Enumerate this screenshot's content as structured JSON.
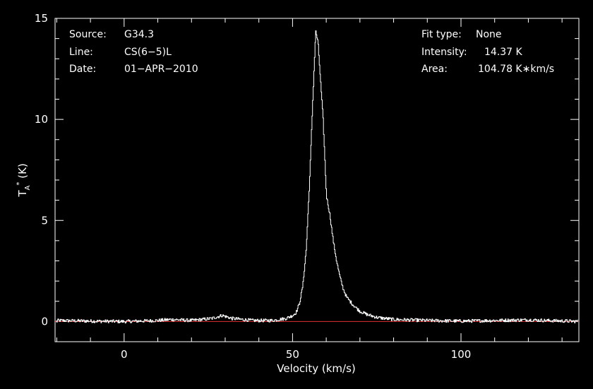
{
  "chart_data": {
    "type": "line",
    "xlabel": "Velocity (km/s)",
    "ylabel_main": "T",
    "ylabel_sub": "A",
    "ylabel_sup": "*",
    "ylabel_unit": " (K)",
    "xlim": [
      -20.5,
      135
    ],
    "ylim": [
      -1,
      15
    ],
    "xticks": [
      {
        "value": 0,
        "label": "0"
      },
      {
        "value": 50,
        "label": "50"
      },
      {
        "value": 100,
        "label": "100"
      }
    ],
    "yticks": [
      {
        "value": 0,
        "label": "0"
      },
      {
        "value": 5,
        "label": "5"
      },
      {
        "value": 10,
        "label": "10"
      },
      {
        "value": 15,
        "label": "15"
      }
    ],
    "grid": false,
    "baseline": {
      "value": 0,
      "color": "#e03030"
    },
    "series": [
      {
        "color": "#ffffff",
        "points": [
          [
            -20,
            0.05
          ],
          [
            -10,
            0.02
          ],
          [
            0,
            0.0
          ],
          [
            10,
            0.05
          ],
          [
            14,
            0.1
          ],
          [
            20,
            0.05
          ],
          [
            26,
            0.15
          ],
          [
            29,
            0.3
          ],
          [
            32,
            0.15
          ],
          [
            38,
            0.05
          ],
          [
            44,
            0.05
          ],
          [
            48,
            0.15
          ],
          [
            50,
            0.3
          ],
          [
            51,
            0.45
          ],
          [
            52,
            0.9
          ],
          [
            53,
            1.8
          ],
          [
            54,
            3.6
          ],
          [
            55,
            7.0
          ],
          [
            56,
            11.2
          ],
          [
            56.8,
            14.37
          ],
          [
            57.5,
            13.8
          ],
          [
            58,
            12.5
          ],
          [
            59,
            10.0
          ],
          [
            60,
            6.2
          ],
          [
            61,
            5.3
          ],
          [
            62,
            4.0
          ],
          [
            63,
            3.0
          ],
          [
            64,
            2.2
          ],
          [
            65,
            1.6
          ],
          [
            66,
            1.2
          ],
          [
            68,
            0.8
          ],
          [
            70,
            0.5
          ],
          [
            72,
            0.35
          ],
          [
            75,
            0.2
          ],
          [
            80,
            0.1
          ],
          [
            90,
            0.05
          ],
          [
            100,
            0.02
          ],
          [
            110,
            0.05
          ],
          [
            120,
            0.08
          ],
          [
            125,
            0.05
          ],
          [
            135,
            0.0
          ]
        ],
        "noise_amplitude": 0.08
      }
    ]
  },
  "info": {
    "source_label": "Source:",
    "source_value": "G34.3",
    "line_label": "Line:",
    "line_value": "CS(6−5)L",
    "date_label": "Date:",
    "date_value": "01−APR−2010",
    "fit_label": "Fit type:",
    "fit_value": "None",
    "intensity_label": "Intensity:",
    "intensity_value": "14.37 K",
    "area_label": "Area:",
    "area_value": "104.78 K∗km/s"
  }
}
